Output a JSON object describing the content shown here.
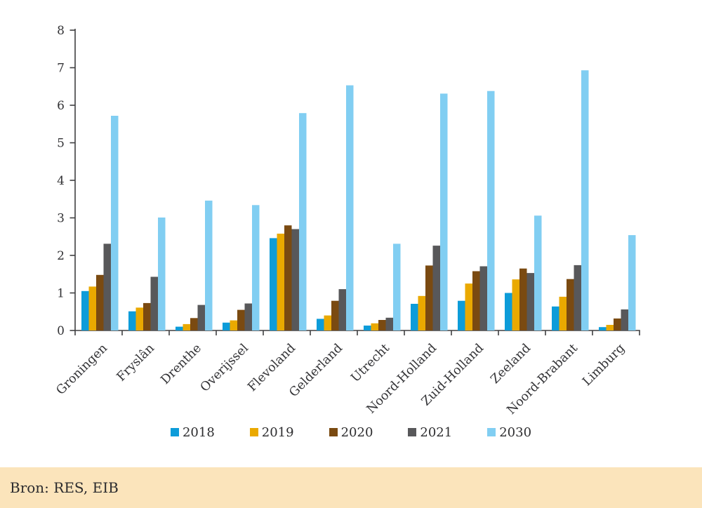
{
  "chart_data": {
    "type": "bar",
    "title": "",
    "xlabel": "",
    "ylabel": "",
    "ylim": [
      0,
      8
    ],
    "ytick_interval": 1,
    "yticks": [
      "0",
      "1",
      "2",
      "3",
      "4",
      "5",
      "6",
      "7",
      "8"
    ],
    "grid": false,
    "legend_position": "bottom-center",
    "categories": [
      "Groningen",
      "Fryslân",
      "Drenthe",
      "Overijssel",
      "Flevoland",
      "Gelderland",
      "Utrecht",
      "Noord-Holland",
      "Zuid-Holland",
      "Zeeland",
      "Noord-Brabant",
      "Limburg"
    ],
    "series": [
      {
        "name": "2018",
        "color": "#0d9cd9",
        "values": [
          1.05,
          0.51,
          0.1,
          0.21,
          2.46,
          0.31,
          0.13,
          0.71,
          0.79,
          1.0,
          0.64,
          0.09
        ]
      },
      {
        "name": "2019",
        "color": "#eaa900",
        "values": [
          1.17,
          0.61,
          0.17,
          0.27,
          2.58,
          0.4,
          0.19,
          0.92,
          1.25,
          1.36,
          0.9,
          0.15
        ]
      },
      {
        "name": "2020",
        "color": "#7a4a11",
        "values": [
          1.48,
          0.73,
          0.33,
          0.55,
          2.8,
          0.79,
          0.28,
          1.73,
          1.58,
          1.65,
          1.37,
          0.32
        ]
      },
      {
        "name": "2021",
        "color": "#58585a",
        "values": [
          2.31,
          1.43,
          0.68,
          0.72,
          2.7,
          1.1,
          0.34,
          2.26,
          1.71,
          1.53,
          1.74,
          0.56
        ]
      },
      {
        "name": "2030",
        "color": "#81cef2",
        "values": [
          5.72,
          3.01,
          3.46,
          3.34,
          5.79,
          6.53,
          2.31,
          6.31,
          6.38,
          3.06,
          6.93,
          2.54
        ]
      }
    ],
    "axis_color": "#3f3f41",
    "tick_label_color": "#333336"
  },
  "footer": {
    "source_label": "Bron: RES, EIB",
    "background": "#fbe4bb"
  }
}
